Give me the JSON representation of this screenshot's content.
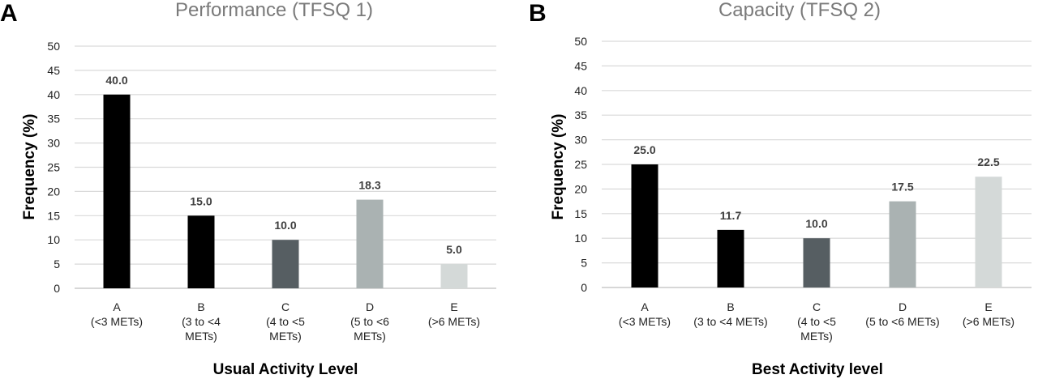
{
  "chart_data": [
    {
      "type": "bar",
      "panel": "A",
      "title": "Performance (TFSQ 1)",
      "xlabel": "Usual Activity Level",
      "ylabel": "Frequency (%)",
      "ylim": [
        0,
        50
      ],
      "yticks": [
        "0",
        "5",
        "10",
        "15",
        "20",
        "25",
        "30",
        "35",
        "40",
        "45",
        "50"
      ],
      "grid": true,
      "categories": [
        [
          "A",
          "(<3 METs)"
        ],
        [
          "B",
          "(3 to <4",
          "METs)"
        ],
        [
          "C",
          "(4 to <5",
          "METs)"
        ],
        [
          "D",
          "(5 to <6",
          "METs)"
        ],
        [
          "E",
          "(>6 METs)"
        ]
      ],
      "values": [
        40.0,
        15.0,
        10.0,
        18.3,
        5.0
      ],
      "data_labels": [
        "40.0",
        "15.0",
        "10.0",
        "18.3",
        "5.0"
      ],
      "colors": [
        "#000000",
        "#000000",
        "#565e62",
        "#aab2b2",
        "#d4d9d8"
      ]
    },
    {
      "type": "bar",
      "panel": "B",
      "title": "Capacity (TFSQ 2)",
      "xlabel": "Best Activity level",
      "ylabel": "Frequency (%)",
      "ylim": [
        0,
        50
      ],
      "yticks": [
        "0",
        "5",
        "10",
        "15",
        "20",
        "25",
        "30",
        "35",
        "40",
        "45",
        "50"
      ],
      "grid": true,
      "categories": [
        [
          "A",
          "(<3 METs)"
        ],
        [
          "B",
          "(3 to <4 METs)"
        ],
        [
          "C",
          "(4 to <5",
          "METs)"
        ],
        [
          "D",
          "(5 to <6 METs)"
        ],
        [
          "E",
          "(>6 METs)"
        ]
      ],
      "values": [
        25.0,
        11.7,
        10.0,
        17.5,
        22.5
      ],
      "data_labels": [
        "25.0",
        "11.7",
        "10.0",
        "17.5",
        "22.5"
      ],
      "colors": [
        "#000000",
        "#000000",
        "#565e62",
        "#aab2b2",
        "#d4d9d8"
      ]
    }
  ]
}
